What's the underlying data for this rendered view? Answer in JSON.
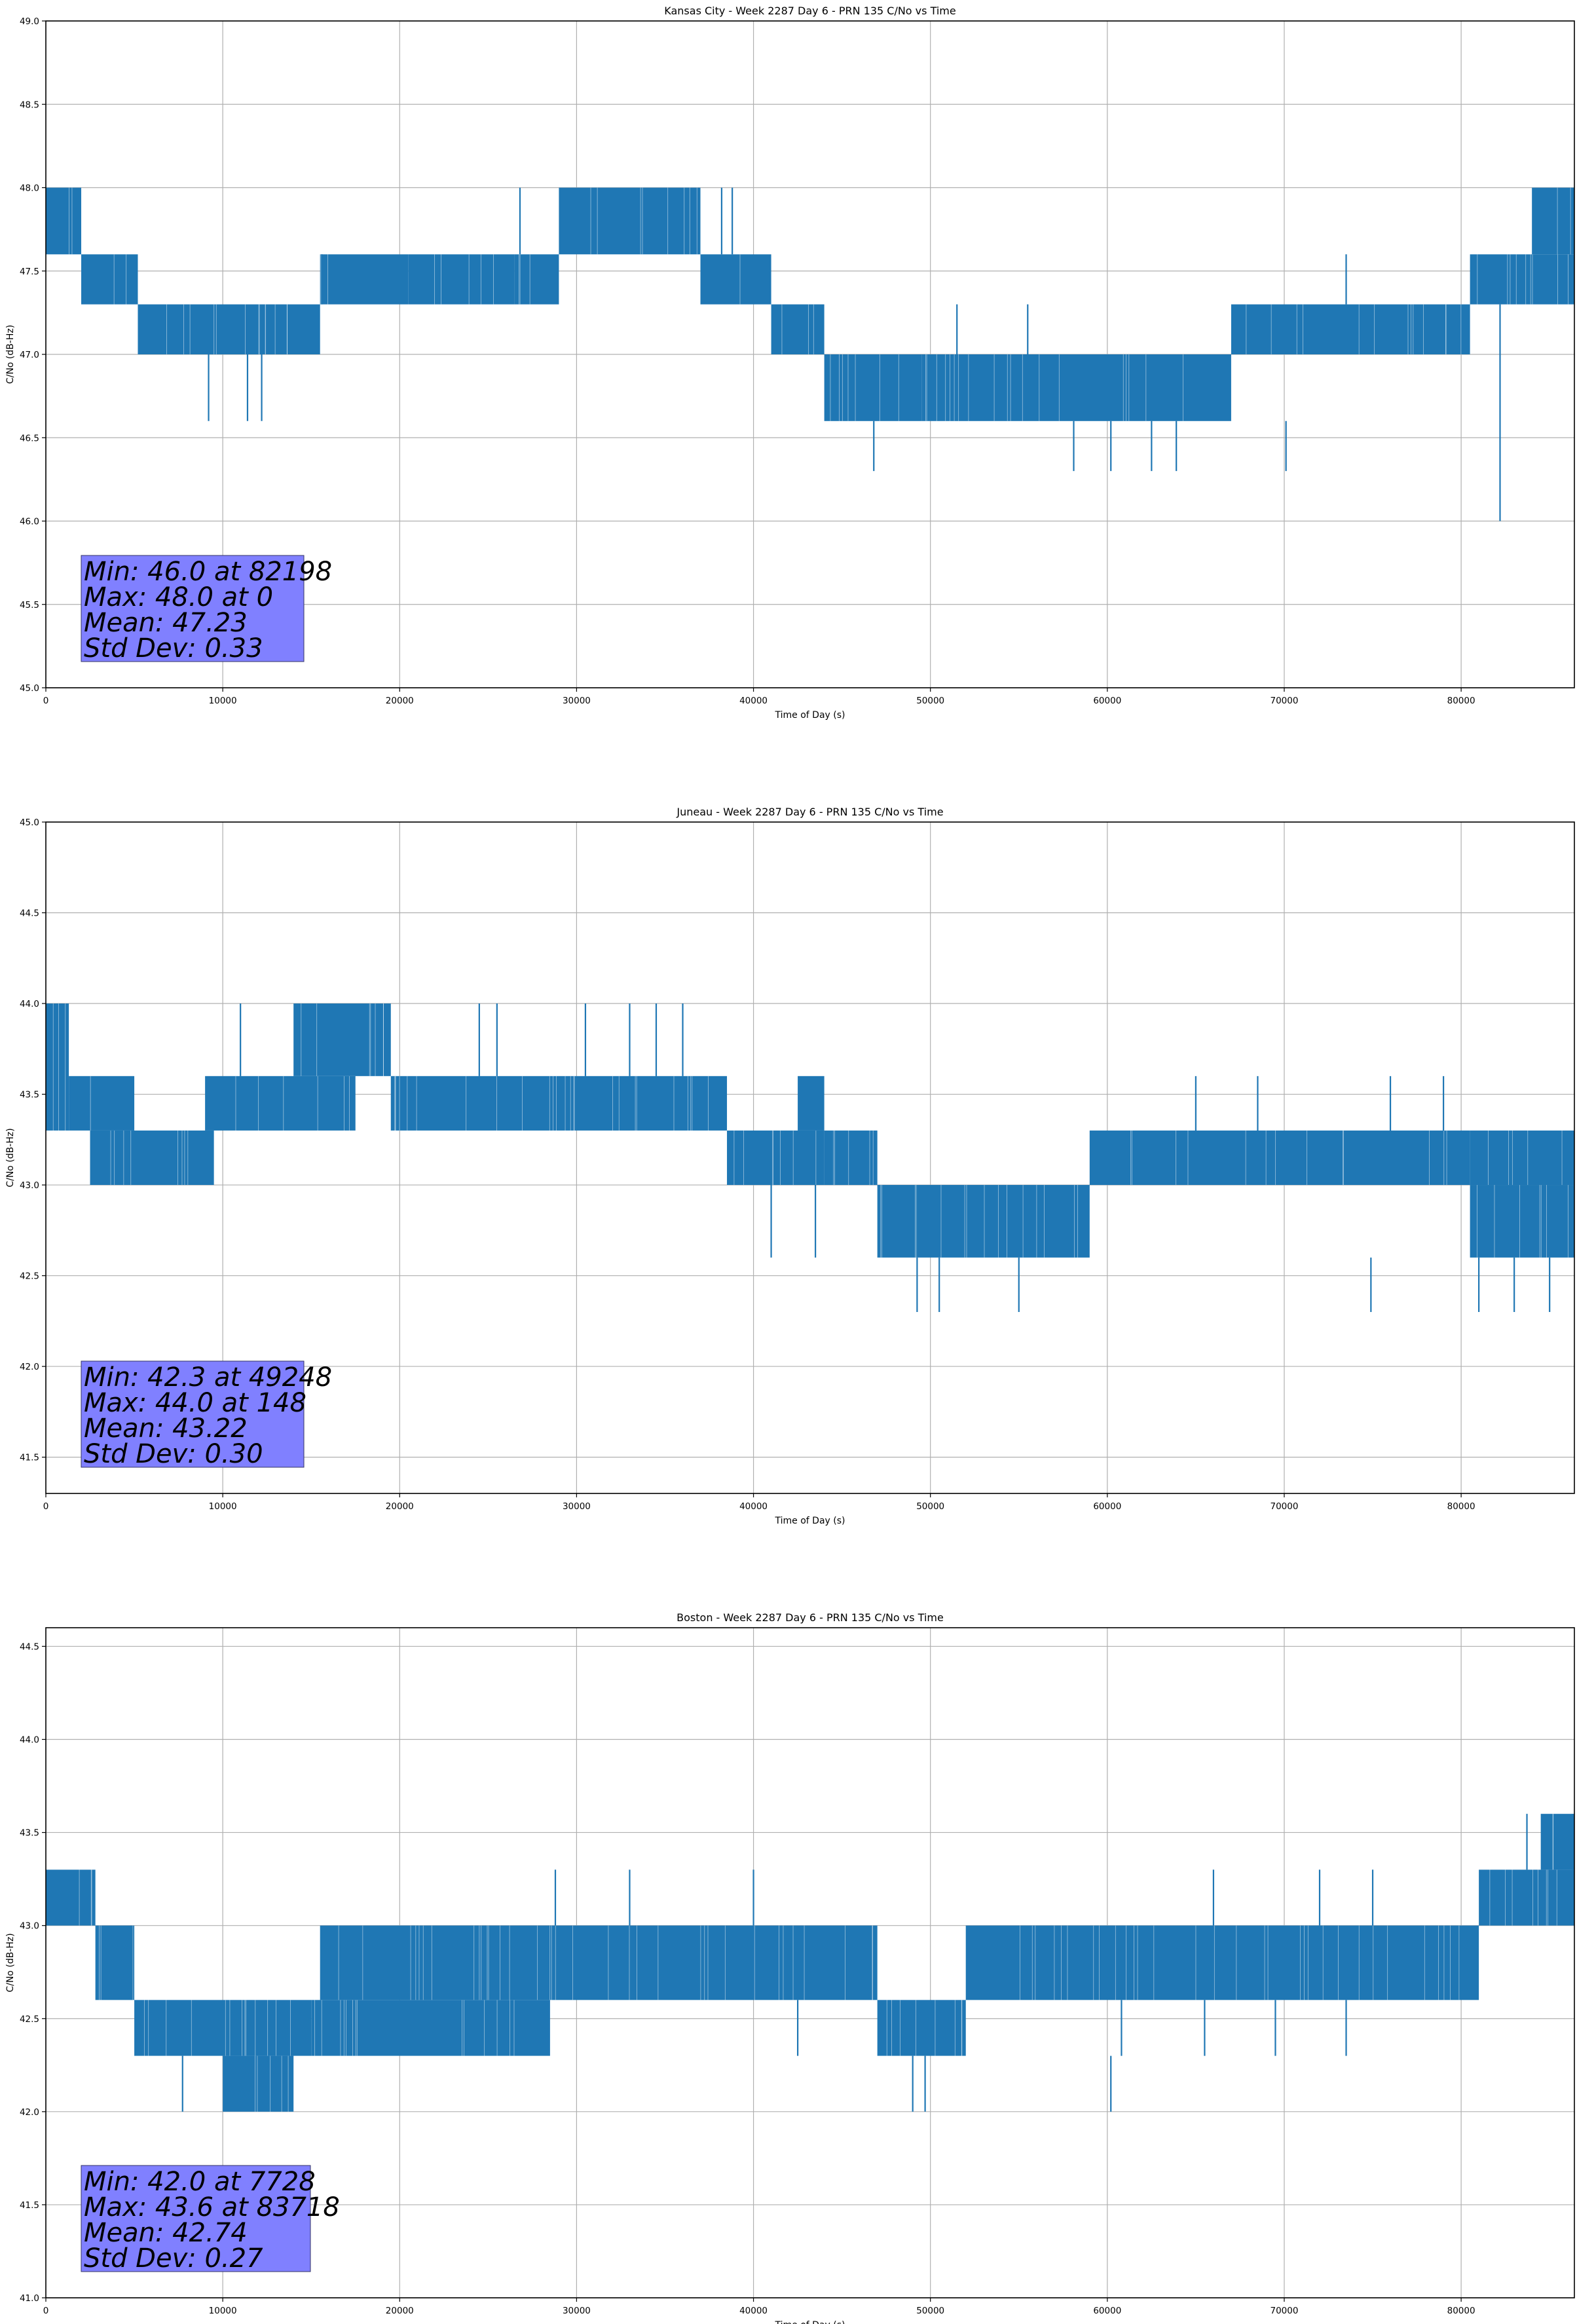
{
  "figure": {
    "series_color": "#1f77b4",
    "stats_box_color": "#8080ff"
  },
  "chart_data": [
    {
      "type": "line",
      "title": "Kansas City - Week 2287 Day 6 - PRN 135 C/No vs Time",
      "xlabel": "Time of Day (s)",
      "ylabel": "C/No (dB-Hz)",
      "xlim": [
        0,
        86400
      ],
      "ylim": [
        45.0,
        49.0
      ],
      "x_ticks": [
        0,
        10000,
        20000,
        30000,
        40000,
        50000,
        60000,
        70000,
        80000
      ],
      "x_tick_labels": [
        "0",
        "10000",
        "20000",
        "30000",
        "40000",
        "50000",
        "60000",
        "70000",
        "80000"
      ],
      "y_ticks": [
        45.0,
        45.5,
        46.0,
        46.5,
        47.0,
        47.5,
        48.0,
        48.5,
        49.0
      ],
      "y_tick_labels": [
        "45.0",
        "45.5",
        "46.0",
        "46.5",
        "47.0",
        "47.5",
        "48.0",
        "48.5",
        "49.0"
      ],
      "grid": true,
      "stats_lines": [
        "Min: 46.0 at 82198",
        "Max: 48.0 at 0",
        "Mean: 47.23",
        "Std Dev: 0.33"
      ],
      "series": [
        {
          "bands": [
            {
              "x": [
                0,
                2000
              ],
              "lo": 47.6,
              "hi": 48.0
            },
            {
              "x": [
                2000,
                5200
              ],
              "lo": 47.3,
              "hi": 47.6
            },
            {
              "x": [
                5200,
                15500
              ],
              "lo": 47.0,
              "hi": 47.3
            },
            {
              "x": [
                15500,
                20500
              ],
              "lo": 47.3,
              "hi": 47.6
            },
            {
              "x": [
                20500,
                26500
              ],
              "lo": 47.3,
              "hi": 47.6
            },
            {
              "x": [
                26500,
                29000
              ],
              "lo": 47.3,
              "hi": 47.6
            },
            {
              "x": [
                29000,
                37000
              ],
              "lo": 47.6,
              "hi": 48.0
            },
            {
              "x": [
                37000,
                41000
              ],
              "lo": 47.3,
              "hi": 47.6
            },
            {
              "x": [
                41000,
                44000
              ],
              "lo": 47.0,
              "hi": 47.3
            },
            {
              "x": [
                44000,
                49500
              ],
              "lo": 46.6,
              "hi": 47.0
            },
            {
              "x": [
                49500,
                67000
              ],
              "lo": 46.6,
              "hi": 47.0
            },
            {
              "x": [
                67000,
                80500
              ],
              "lo": 47.0,
              "hi": 47.3
            },
            {
              "x": [
                80500,
                86400
              ],
              "lo": 47.3,
              "hi": 47.6
            },
            {
              "x": [
                84000,
                86400
              ],
              "lo": 47.6,
              "hi": 48.0
            }
          ],
          "spikes": [
            {
              "x": 9200,
              "lo": 46.6,
              "hi": 47.0
            },
            {
              "x": 11400,
              "lo": 46.6,
              "hi": 47.0
            },
            {
              "x": 12200,
              "lo": 46.6,
              "hi": 47.0
            },
            {
              "x": 15600,
              "lo": 47.3,
              "hi": 47.6
            },
            {
              "x": 26800,
              "lo": 47.6,
              "hi": 48.0
            },
            {
              "x": 38200,
              "lo": 47.6,
              "hi": 48.0
            },
            {
              "x": 38800,
              "lo": 47.6,
              "hi": 48.0
            },
            {
              "x": 46800,
              "lo": 46.3,
              "hi": 46.6
            },
            {
              "x": 58100,
              "lo": 46.3,
              "hi": 46.6
            },
            {
              "x": 60200,
              "lo": 46.3,
              "hi": 46.6
            },
            {
              "x": 62500,
              "lo": 46.3,
              "hi": 46.6
            },
            {
              "x": 63900,
              "lo": 46.3,
              "hi": 46.6
            },
            {
              "x": 70100,
              "lo": 46.3,
              "hi": 46.6
            },
            {
              "x": 73500,
              "lo": 47.3,
              "hi": 47.6
            },
            {
              "x": 82198,
              "lo": 46.0,
              "hi": 47.3
            },
            {
              "x": 55500,
              "lo": 47.0,
              "hi": 47.3
            },
            {
              "x": 51500,
              "lo": 47.0,
              "hi": 47.3
            }
          ]
        }
      ]
    },
    {
      "type": "line",
      "title": "Juneau - Week 2287 Day 6 - PRN 135 C/No vs Time",
      "xlabel": "Time of Day (s)",
      "ylabel": "C/No (dB-Hz)",
      "xlim": [
        0,
        86400
      ],
      "ylim": [
        41.3,
        45.0
      ],
      "x_ticks": [
        0,
        10000,
        20000,
        30000,
        40000,
        50000,
        60000,
        70000,
        80000
      ],
      "x_tick_labels": [
        "0",
        "10000",
        "20000",
        "30000",
        "40000",
        "50000",
        "60000",
        "70000",
        "80000"
      ],
      "y_ticks": [
        41.5,
        42.0,
        42.5,
        43.0,
        43.5,
        44.0,
        44.5,
        45.0
      ],
      "y_tick_labels": [
        "41.5",
        "42.0",
        "42.5",
        "43.0",
        "43.5",
        "44.0",
        "44.5",
        "45.0"
      ],
      "grid": true,
      "stats_lines": [
        "Min: 42.3 at 49248",
        "Max: 44.0 at 148",
        "Mean: 43.22",
        "Std Dev: 0.30"
      ],
      "series": [
        {
          "bands": [
            {
              "x": [
                0,
                1300
              ],
              "lo": 43.3,
              "hi": 44.0
            },
            {
              "x": [
                1300,
                2500
              ],
              "lo": 43.3,
              "hi": 43.6
            },
            {
              "x": [
                2500,
                9500
              ],
              "lo": 43.0,
              "hi": 43.3
            },
            {
              "x": [
                2500,
                5000
              ],
              "lo": 43.3,
              "hi": 43.6
            },
            {
              "x": [
                9000,
                17500
              ],
              "lo": 43.3,
              "hi": 43.6
            },
            {
              "x": [
                14000,
                19500
              ],
              "lo": 43.6,
              "hi": 44.0
            },
            {
              "x": [
                19500,
                38500
              ],
              "lo": 43.3,
              "hi": 43.6
            },
            {
              "x": [
                38500,
                44000
              ],
              "lo": 43.0,
              "hi": 43.3
            },
            {
              "x": [
                42500,
                44000
              ],
              "lo": 43.3,
              "hi": 43.6
            },
            {
              "x": [
                44000,
                47000
              ],
              "lo": 43.0,
              "hi": 43.3
            },
            {
              "x": [
                47000,
                59000
              ],
              "lo": 42.6,
              "hi": 43.0
            },
            {
              "x": [
                59000,
                80500
              ],
              "lo": 43.0,
              "hi": 43.3
            },
            {
              "x": [
                80500,
                86400
              ],
              "lo": 42.6,
              "hi": 43.0
            },
            {
              "x": [
                80500,
                86400
              ],
              "lo": 43.0,
              "hi": 43.3
            }
          ],
          "spikes": [
            {
              "x": 148,
              "lo": 43.6,
              "hi": 44.0
            },
            {
              "x": 11000,
              "lo": 43.6,
              "hi": 44.0
            },
            {
              "x": 24500,
              "lo": 43.6,
              "hi": 44.0
            },
            {
              "x": 25500,
              "lo": 43.6,
              "hi": 44.0
            },
            {
              "x": 30500,
              "lo": 43.6,
              "hi": 44.0
            },
            {
              "x": 33000,
              "lo": 43.6,
              "hi": 44.0
            },
            {
              "x": 34500,
              "lo": 43.6,
              "hi": 44.0
            },
            {
              "x": 36000,
              "lo": 43.6,
              "hi": 44.0
            },
            {
              "x": 41000,
              "lo": 42.6,
              "hi": 43.0
            },
            {
              "x": 43500,
              "lo": 42.6,
              "hi": 43.0
            },
            {
              "x": 49248,
              "lo": 42.3,
              "hi": 42.6
            },
            {
              "x": 50500,
              "lo": 42.3,
              "hi": 42.6
            },
            {
              "x": 55000,
              "lo": 42.3,
              "hi": 42.6
            },
            {
              "x": 74900,
              "lo": 42.3,
              "hi": 42.6
            },
            {
              "x": 81000,
              "lo": 42.3,
              "hi": 42.6
            },
            {
              "x": 83000,
              "lo": 42.3,
              "hi": 42.6
            },
            {
              "x": 85000,
              "lo": 42.3,
              "hi": 42.6
            },
            {
              "x": 65000,
              "lo": 43.3,
              "hi": 43.6
            },
            {
              "x": 68500,
              "lo": 43.3,
              "hi": 43.6
            },
            {
              "x": 76000,
              "lo": 43.3,
              "hi": 43.6
            },
            {
              "x": 79000,
              "lo": 43.3,
              "hi": 43.6
            }
          ]
        }
      ]
    },
    {
      "type": "line",
      "title": "Boston - Week 2287 Day 6 - PRN 135 C/No vs Time",
      "xlabel": "Time of Day (s)",
      "ylabel": "C/No (dB-Hz)",
      "xlim": [
        0,
        86400
      ],
      "ylim": [
        41.0,
        44.6
      ],
      "x_ticks": [
        0,
        10000,
        20000,
        30000,
        40000,
        50000,
        60000,
        70000,
        80000
      ],
      "x_tick_labels": [
        "0",
        "10000",
        "20000",
        "30000",
        "40000",
        "50000",
        "60000",
        "70000",
        "80000"
      ],
      "y_ticks": [
        41.0,
        41.5,
        42.0,
        42.5,
        43.0,
        43.5,
        44.0,
        44.5
      ],
      "y_tick_labels": [
        "41.0",
        "41.5",
        "42.0",
        "42.5",
        "43.0",
        "43.5",
        "44.0",
        "44.5"
      ],
      "grid": true,
      "stats_lines": [
        "Min: 42.0 at 7728",
        "Max: 43.6 at 83718",
        "Mean: 42.74",
        "Std Dev: 0.27"
      ],
      "series": [
        {
          "bands": [
            {
              "x": [
                0,
                2800
              ],
              "lo": 43.0,
              "hi": 43.3
            },
            {
              "x": [
                2800,
                5000
              ],
              "lo": 42.6,
              "hi": 43.0
            },
            {
              "x": [
                5000,
                15000
              ],
              "lo": 42.3,
              "hi": 42.6
            },
            {
              "x": [
                10000,
                14000
              ],
              "lo": 42.0,
              "hi": 42.3
            },
            {
              "x": [
                15000,
                28500
              ],
              "lo": 42.3,
              "hi": 42.6
            },
            {
              "x": [
                15500,
                28500
              ],
              "lo": 42.6,
              "hi": 43.0
            },
            {
              "x": [
                28500,
                47000
              ],
              "lo": 42.6,
              "hi": 43.0
            },
            {
              "x": [
                47000,
                52000
              ],
              "lo": 42.3,
              "hi": 42.6
            },
            {
              "x": [
                52000,
                81000
              ],
              "lo": 42.6,
              "hi": 43.0
            },
            {
              "x": [
                81000,
                86400
              ],
              "lo": 43.0,
              "hi": 43.3
            },
            {
              "x": [
                84500,
                86400
              ],
              "lo": 43.3,
              "hi": 43.6
            }
          ],
          "spikes": [
            {
              "x": 7728,
              "lo": 42.0,
              "hi": 42.3
            },
            {
              "x": 28800,
              "lo": 43.0,
              "hi": 43.3
            },
            {
              "x": 33000,
              "lo": 43.0,
              "hi": 43.3
            },
            {
              "x": 40000,
              "lo": 43.0,
              "hi": 43.3
            },
            {
              "x": 49000,
              "lo": 42.0,
              "hi": 42.3
            },
            {
              "x": 49700,
              "lo": 42.0,
              "hi": 42.3
            },
            {
              "x": 60200,
              "lo": 42.0,
              "hi": 42.3
            },
            {
              "x": 66000,
              "lo": 43.0,
              "hi": 43.3
            },
            {
              "x": 72000,
              "lo": 43.0,
              "hi": 43.3
            },
            {
              "x": 75000,
              "lo": 43.0,
              "hi": 43.3
            },
            {
              "x": 83718,
              "lo": 43.3,
              "hi": 43.6
            },
            {
              "x": 86300,
              "lo": 43.3,
              "hi": 43.6
            },
            {
              "x": 42500,
              "lo": 42.3,
              "hi": 42.6
            },
            {
              "x": 60800,
              "lo": 42.3,
              "hi": 42.6
            },
            {
              "x": 65500,
              "lo": 42.3,
              "hi": 42.6
            },
            {
              "x": 69500,
              "lo": 42.3,
              "hi": 42.6
            },
            {
              "x": 73500,
              "lo": 42.3,
              "hi": 42.6
            }
          ]
        }
      ]
    }
  ]
}
